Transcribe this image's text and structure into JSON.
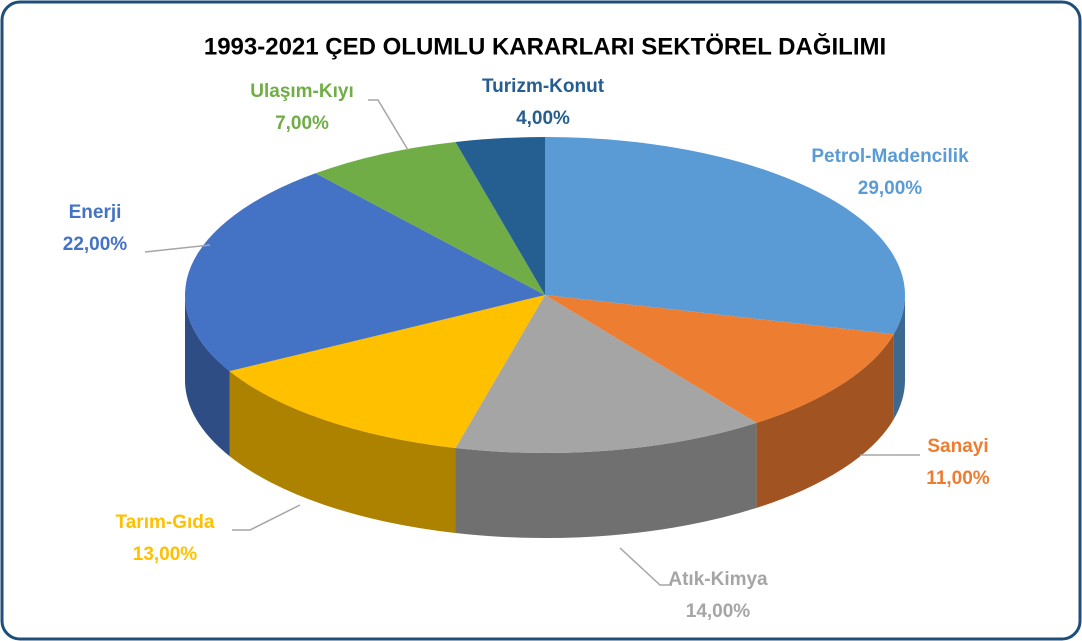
{
  "chart_data": {
    "type": "pie3d",
    "title": "1993-2021 ÇED OLUMLU KARARLARI SEKTÖREL DAĞILIMI",
    "categories": [
      "Petrol-Madencilik",
      "Sanayi",
      "Atık-Kimya",
      "Tarım-Gıda",
      "Enerji",
      "Ulaşım-Kıyı",
      "Turizm-Konut"
    ],
    "values": [
      29,
      11,
      14,
      13,
      22,
      7,
      4
    ],
    "value_labels": [
      "29,00%",
      "11,00%",
      "14,00%",
      "13,00%",
      "22,00%",
      "7,00%",
      "4,00%"
    ],
    "colors": [
      "#5b9bd5",
      "#ed7d31",
      "#a5a5a5",
      "#ffc000",
      "#4472c4",
      "#70ad47",
      "#255e91"
    ]
  }
}
